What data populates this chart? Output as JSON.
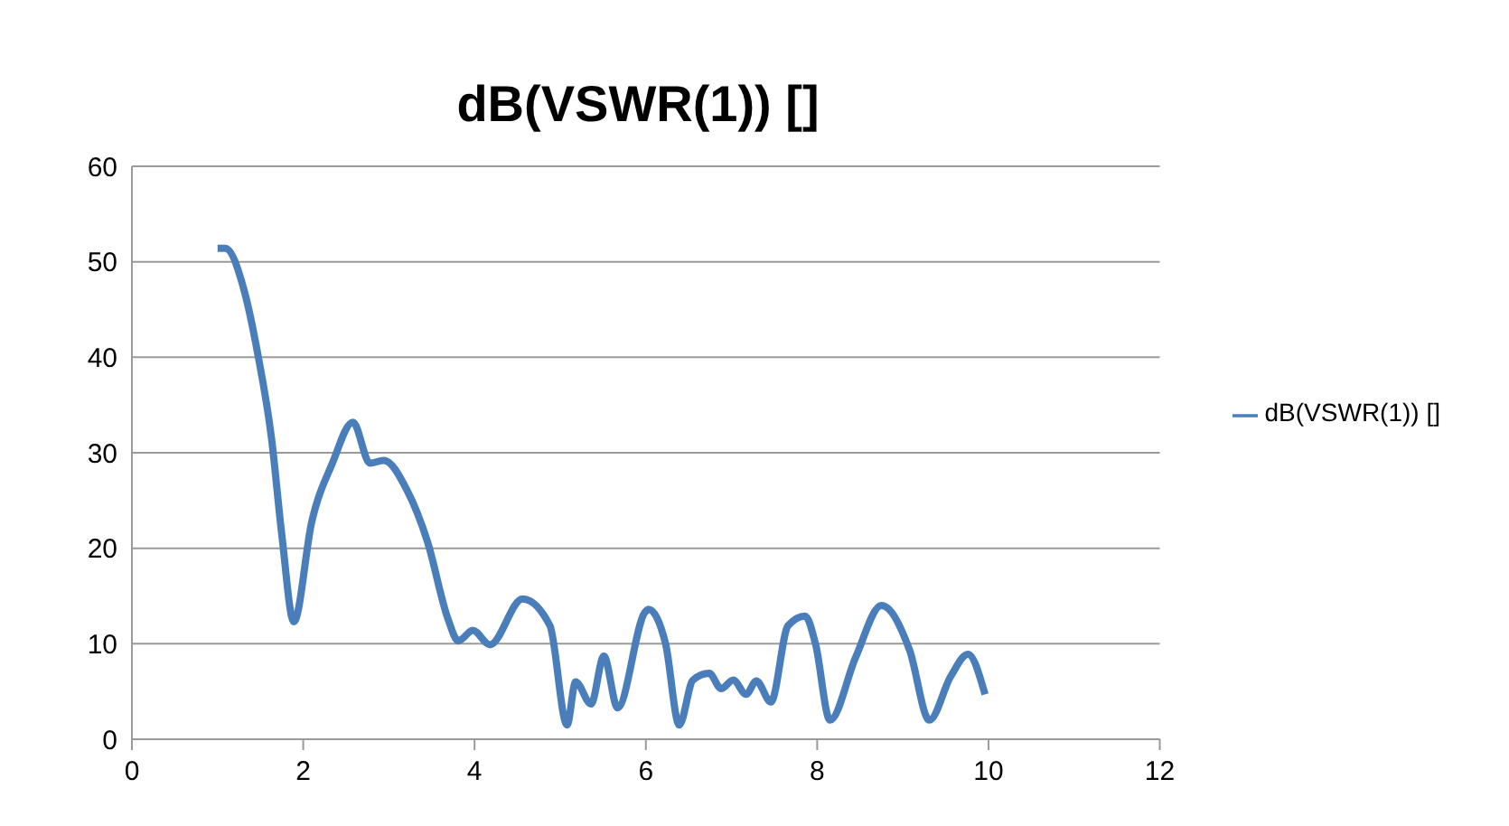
{
  "chart_data": {
    "type": "line",
    "title": "dB(VSWR(1)) []",
    "x": [
      1.0,
      1.09,
      1.31,
      1.47,
      1.63,
      1.75,
      1.89,
      2.1,
      2.34,
      2.58,
      2.78,
      2.94,
      3.21,
      3.45,
      3.69,
      3.81,
      3.98,
      4.18,
      4.56,
      4.88,
      5.08,
      5.18,
      5.36,
      5.51,
      5.67,
      5.99,
      6.03,
      6.23,
      6.39,
      6.55,
      6.74,
      6.88,
      7.02,
      7.17,
      7.29,
      7.46,
      7.66,
      7.86,
      7.98,
      8.15,
      8.45,
      8.75,
      9.08,
      9.31,
      9.56,
      9.76,
      9.96
    ],
    "series": [
      {
        "name": "dB(VSWR(1)) []",
        "color": "#4a7ebb",
        "values": [
          51.4,
          51.4,
          47.0,
          40.3,
          31.5,
          21.4,
          12.3,
          22.8,
          28.9,
          33.2,
          28.9,
          29.2,
          26.1,
          20.7,
          12.6,
          10.3,
          11.4,
          9.9,
          14.7,
          11.9,
          1.5,
          6.0,
          3.7,
          8.7,
          3.3,
          13.3,
          13.6,
          10.0,
          1.5,
          6.2,
          6.9,
          5.3,
          6.2,
          4.7,
          6.1,
          3.9,
          11.9,
          12.9,
          10.0,
          2.0,
          8.6,
          14.0,
          9.3,
          2.0,
          6.6,
          8.9,
          4.7
        ]
      }
    ],
    "xlim": [
      0,
      12
    ],
    "xticks": [
      0,
      2,
      4,
      6,
      8,
      10,
      12
    ],
    "ylim": [
      0,
      60
    ],
    "yticks": [
      0,
      10,
      20,
      30,
      40,
      50,
      60
    ],
    "grid": "y",
    "legend": "right",
    "marker": "none",
    "line_style": "solid"
  }
}
